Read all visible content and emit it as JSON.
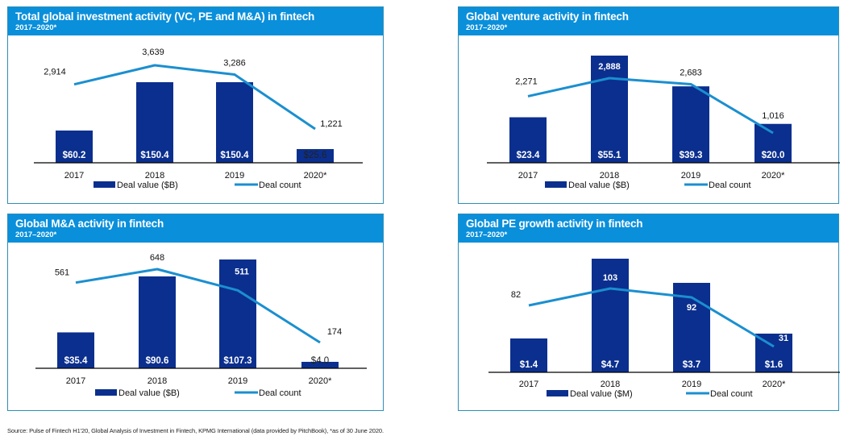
{
  "colors": {
    "header": "#0a8fdb",
    "bar": "#0b2f8e",
    "line": "#1b8fd0",
    "border": "#2f8fb5"
  },
  "source": "Source: Pulse of Fintech H1'20, Global Analysis of Investment in Fintech, KPMG International (data provided by PitchBook), *as of 30 June 2020.",
  "chart_data": [
    {
      "type": "bar",
      "title": "Total global investment activity (VC, PE and M&A) in fintech",
      "subtitle": "2017–2020*",
      "categories": [
        "2017",
        "2018",
        "2019",
        "2020*"
      ],
      "series": [
        {
          "name": "Deal value ($B)",
          "kind": "bar",
          "values": [
            60.2,
            150.4,
            150.4,
            25.6
          ],
          "labels": [
            "$60.2",
            "$150.4",
            "$150.4",
            "$25.6"
          ]
        },
        {
          "name": "Deal count",
          "kind": "line",
          "values": [
            2914,
            3639,
            3286,
            1221
          ],
          "labels": [
            "2,914",
            "3,639",
            "3,286",
            "1,221"
          ]
        }
      ],
      "legend": [
        "Deal value ($B)",
        "Deal count"
      ],
      "legend_position": "bottom",
      "grid": false
    },
    {
      "type": "bar",
      "title": "Global venture activity in fintech",
      "subtitle": "2017–2020*",
      "categories": [
        "2017",
        "2018",
        "2019",
        "2020*"
      ],
      "series": [
        {
          "name": "Deal value ($B)",
          "kind": "bar",
          "values": [
            23.4,
            55.1,
            39.3,
            20.0
          ],
          "labels": [
            "$23.4",
            "$55.1",
            "$39.3",
            "$20.0"
          ]
        },
        {
          "name": "Deal count",
          "kind": "line",
          "values": [
            2271,
            2888,
            2683,
            1016
          ],
          "labels": [
            "2,271",
            "2,888",
            "2,683",
            "1,016"
          ]
        }
      ],
      "legend": [
        "Deal value ($B)",
        "Deal count"
      ],
      "legend_position": "bottom",
      "grid": false
    },
    {
      "type": "bar",
      "title": "Global M&A activity in fintech",
      "subtitle": "2017–2020*",
      "categories": [
        "2017",
        "2018",
        "2019",
        "2020*"
      ],
      "series": [
        {
          "name": "Deal value ($B)",
          "kind": "bar",
          "values": [
            35.4,
            90.6,
            107.3,
            4.0
          ],
          "labels": [
            "$35.4",
            "$90.6",
            "$107.3",
            "$4.0"
          ]
        },
        {
          "name": "Deal count",
          "kind": "line",
          "values": [
            561,
            648,
            511,
            174
          ],
          "labels": [
            "561",
            "648",
            "511",
            "174"
          ]
        }
      ],
      "legend": [
        "Deal value ($B)",
        "Deal count"
      ],
      "legend_position": "bottom",
      "grid": false
    },
    {
      "type": "bar",
      "title": "Global PE growth activity in fintech",
      "subtitle": "2017–2020*",
      "categories": [
        "2017",
        "2018",
        "2019",
        "2020*"
      ],
      "series": [
        {
          "name": "Deal value ($M)",
          "kind": "bar",
          "values": [
            1.4,
            4.7,
            3.7,
            1.6
          ],
          "labels": [
            "$1.4",
            "$4.7",
            "$3.7",
            "$1.6"
          ]
        },
        {
          "name": "Deal count",
          "kind": "line",
          "values": [
            82,
            103,
            92,
            31
          ],
          "labels": [
            "82",
            "103",
            "92",
            "31"
          ]
        }
      ],
      "legend": [
        "Deal value ($M)",
        "Deal count"
      ],
      "legend_position": "bottom",
      "grid": false
    }
  ]
}
